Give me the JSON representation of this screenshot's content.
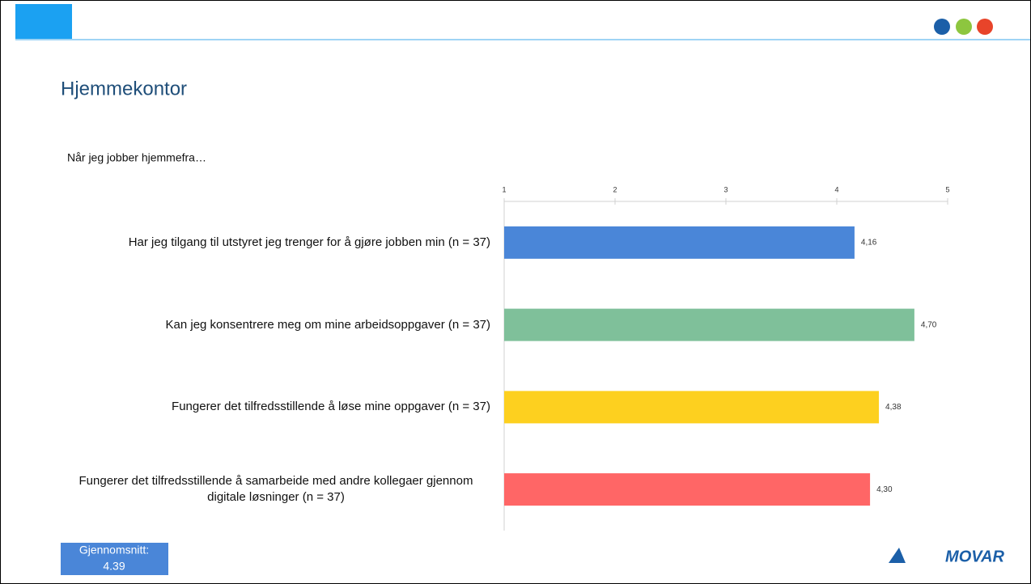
{
  "header": {
    "title": "Hjemmekontor",
    "subtitle": "Når jeg jobber hjemmefra…"
  },
  "chart_data": {
    "type": "bar",
    "orientation": "horizontal",
    "categories": [
      "Har jeg tilgang til utstyret jeg trenger for å gjøre jobben min (n = 37)",
      "Kan jeg konsentrere meg om mine arbeidsoppgaver (n = 37)",
      "Fungerer det tilfredsstillende å løse mine oppgaver (n = 37)",
      "Fungerer det tilfredsstillende å samarbeide med andre kollegaer gjennom digitale løsninger (n = 37)"
    ],
    "values": [
      4.16,
      4.7,
      4.38,
      4.3
    ],
    "value_labels": [
      "4,16",
      "4,70",
      "4,38",
      "4,30"
    ],
    "colors": [
      "#4a86d8",
      "#7fc09a",
      "#fdd01f",
      "#ff6666"
    ],
    "xlim": [
      1,
      5
    ],
    "xticks": [
      1,
      2,
      3,
      4,
      5
    ],
    "grid": false
  },
  "average": {
    "label": "Gjennomsnitt:",
    "value": 4.39
  },
  "logo": "MOVAR"
}
